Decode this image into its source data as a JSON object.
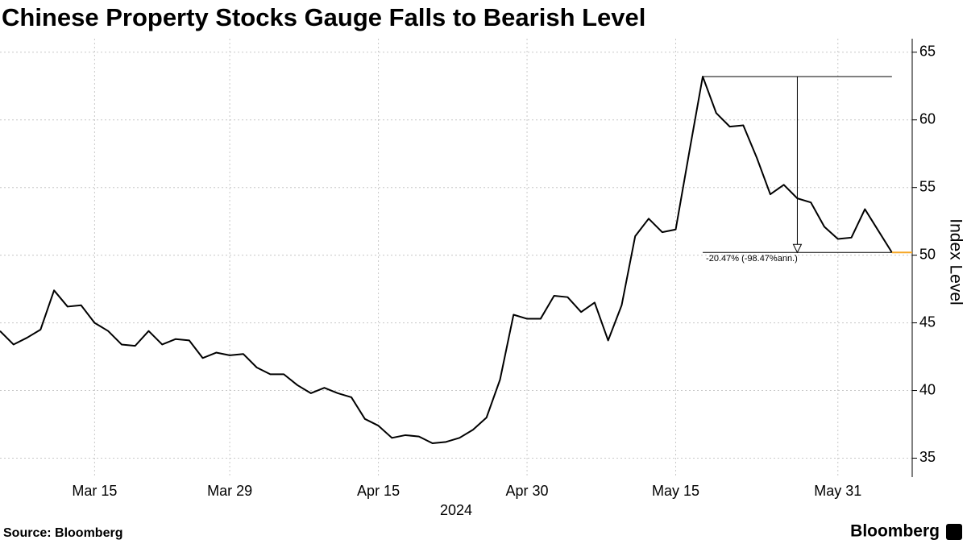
{
  "chart_data": {
    "type": "line",
    "title": "Chinese Property Stocks Gauge Falls to Bearish Level",
    "xlabel": "2024",
    "ylabel": "Index Level",
    "source": "Source: Bloomberg",
    "brand": "Bloomberg",
    "annotation": "-20.47% (-98.47%ann.)",
    "categories": [
      null,
      null,
      null,
      null,
      null,
      null,
      null,
      "Mar 15",
      null,
      null,
      null,
      null,
      null,
      null,
      null,
      null,
      null,
      "Mar 29",
      null,
      null,
      null,
      null,
      null,
      null,
      null,
      null,
      null,
      null,
      "Apr 15",
      null,
      null,
      null,
      null,
      null,
      null,
      null,
      null,
      null,
      null,
      "Apr 30",
      null,
      null,
      null,
      null,
      null,
      null,
      null,
      null,
      null,
      null,
      "May 15",
      null,
      null,
      null,
      null,
      null,
      null,
      null,
      null,
      null,
      null,
      null,
      "May 31",
      null,
      null,
      null,
      null
    ],
    "series": [
      {
        "name": "Index Level",
        "color": "#000000",
        "values": [
          44.4,
          43.4,
          43.9,
          44.5,
          47.4,
          46.2,
          46.3,
          45.0,
          44.4,
          43.4,
          43.3,
          44.4,
          43.4,
          43.8,
          43.7,
          42.4,
          42.8,
          42.6,
          42.7,
          41.7,
          41.2,
          41.2,
          40.4,
          39.8,
          40.2,
          39.8,
          39.5,
          37.9,
          37.4,
          36.5,
          36.7,
          36.6,
          36.1,
          36.2,
          36.5,
          37.1,
          38.0,
          40.8,
          45.6,
          45.3,
          45.3,
          47.0,
          46.9,
          45.8,
          46.5,
          43.7,
          46.3,
          51.4,
          52.7,
          51.7,
          51.9,
          57.6,
          63.2,
          60.5,
          59.5,
          59.6,
          57.2,
          54.5,
          55.2,
          54.2,
          53.9,
          52.1,
          51.2,
          51.3,
          53.4,
          51.8,
          50.2
        ]
      }
    ],
    "last_marker_color": "#f5a623",
    "ylim": [
      33.6,
      66
    ],
    "yticks": [
      35,
      40,
      45,
      50,
      55,
      60,
      65
    ],
    "grid": true
  }
}
